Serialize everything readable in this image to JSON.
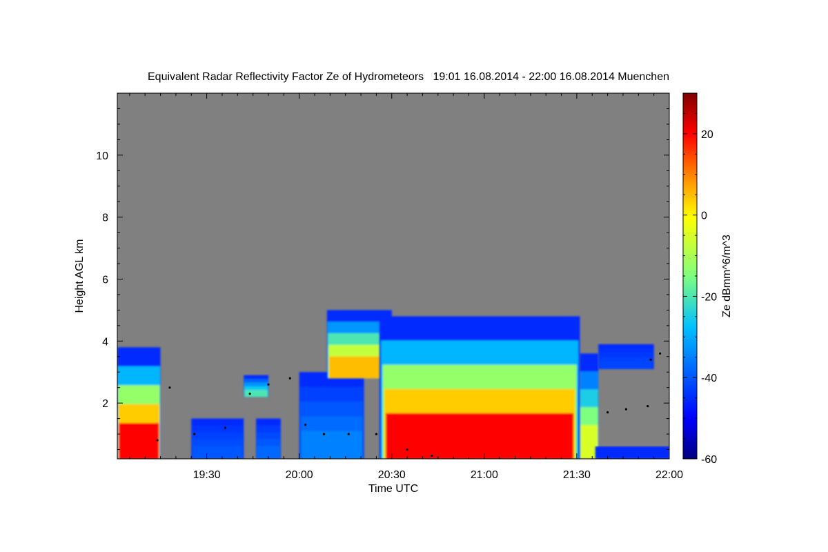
{
  "chart_data": {
    "type": "heatmap",
    "title": "Equivalent Radar Reflectivity Factor Ze of Hydrometeors   19:01 16.08.2014 - 22:00 16.08.2014 Muenchen",
    "xlabel": "Time UTC",
    "ylabel": "Height AGL km",
    "colorbar_label": "Ze dBmm^6/m^3",
    "x_range_minutes_utc": [
      1141,
      1320
    ],
    "y_range_km": [
      0.2,
      12.0
    ],
    "x_ticks": [
      {
        "value": 1170,
        "label": "19:30"
      },
      {
        "value": 1200,
        "label": "20:00"
      },
      {
        "value": 1230,
        "label": "20:30"
      },
      {
        "value": 1260,
        "label": "21:00"
      },
      {
        "value": 1290,
        "label": "21:30"
      },
      {
        "value": 1320,
        "label": "22:00"
      }
    ],
    "y_ticks": [
      {
        "value": 2,
        "label": "2"
      },
      {
        "value": 4,
        "label": "4"
      },
      {
        "value": 6,
        "label": "6"
      },
      {
        "value": 8,
        "label": "8"
      },
      {
        "value": 10,
        "label": "10"
      }
    ],
    "colorbar_range_dbz": [
      -60,
      30
    ],
    "colorbar_ticks": [
      {
        "value": 20,
        "label": "20"
      },
      {
        "value": 0,
        "label": "0"
      },
      {
        "value": -20,
        "label": "-20"
      },
      {
        "value": -40,
        "label": "-40"
      },
      {
        "value": -60,
        "label": "-60"
      }
    ],
    "background_color": "#808080",
    "echo_cells": [
      {
        "t0": 1141,
        "t1": 1155,
        "base_km": 0.2,
        "top_km": 3.8,
        "peak_dbz": 20
      },
      {
        "t0": 1165,
        "t1": 1182,
        "base_km": 0.2,
        "top_km": 1.5,
        "peak_dbz": -40
      },
      {
        "t0": 1182,
        "t1": 1190,
        "base_km": 2.2,
        "top_km": 2.9,
        "peak_dbz": -20
      },
      {
        "t0": 1186,
        "t1": 1194,
        "base_km": 0.2,
        "top_km": 1.5,
        "peak_dbz": -38
      },
      {
        "t0": 1200,
        "t1": 1221,
        "base_km": 0.2,
        "top_km": 3.0,
        "peak_dbz": -35
      },
      {
        "t0": 1209,
        "t1": 1230,
        "base_km": 2.8,
        "top_km": 5.0,
        "peak_dbz": 5
      },
      {
        "t0": 1226,
        "t1": 1291,
        "base_km": 0.2,
        "top_km": 4.8,
        "peak_dbz": 20
      },
      {
        "t0": 1291,
        "t1": 1297,
        "base_km": 0.2,
        "top_km": 3.6,
        "peak_dbz": -5
      },
      {
        "t0": 1296,
        "t1": 1320,
        "base_km": 0.2,
        "top_km": 0.6,
        "peak_dbz": -45
      },
      {
        "t0": 1297,
        "t1": 1315,
        "base_km": 3.1,
        "top_km": 3.9,
        "peak_dbz": -42
      }
    ],
    "cloud_base_km": [
      {
        "t": 1154,
        "h": 0.8
      },
      {
        "t": 1158,
        "h": 2.5
      },
      {
        "t": 1166,
        "h": 1.0
      },
      {
        "t": 1176,
        "h": 1.2
      },
      {
        "t": 1184,
        "h": 2.3
      },
      {
        "t": 1190,
        "h": 2.6
      },
      {
        "t": 1197,
        "h": 2.8
      },
      {
        "t": 1202,
        "h": 1.3
      },
      {
        "t": 1208,
        "h": 1.0
      },
      {
        "t": 1216,
        "h": 1.0
      },
      {
        "t": 1225,
        "h": 1.0
      },
      {
        "t": 1235,
        "h": 0.5
      },
      {
        "t": 1243,
        "h": 0.3
      },
      {
        "t": 1300,
        "h": 1.7
      },
      {
        "t": 1306,
        "h": 1.8
      },
      {
        "t": 1313,
        "h": 1.9
      },
      {
        "t": 1314,
        "h": 3.4
      },
      {
        "t": 1317,
        "h": 3.6
      }
    ]
  }
}
